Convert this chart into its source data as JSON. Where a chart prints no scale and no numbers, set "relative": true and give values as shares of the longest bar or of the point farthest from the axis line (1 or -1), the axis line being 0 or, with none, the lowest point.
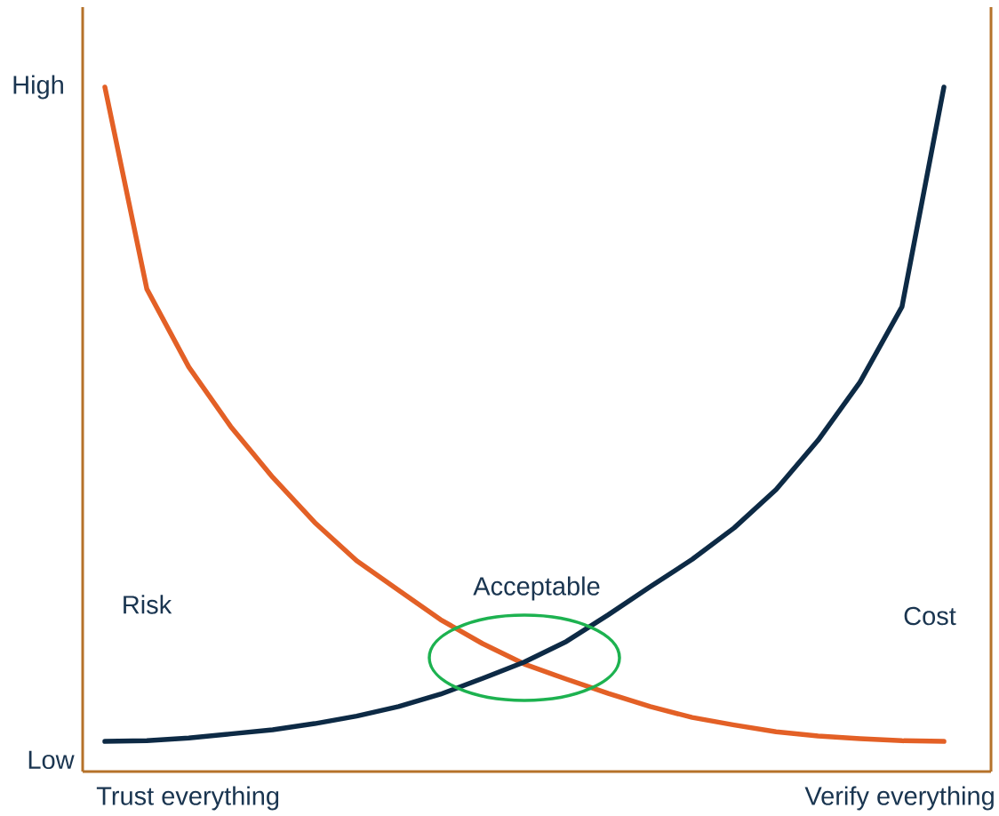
{
  "chart_data": {
    "type": "line",
    "relative": true,
    "line_style": "solid",
    "categories": [
      null,
      null,
      null,
      null,
      null,
      null,
      null,
      null,
      null,
      null,
      null,
      null,
      null,
      null,
      null,
      null,
      null,
      null,
      null,
      null,
      null
    ],
    "series": [
      {
        "color": "#e36026",
        "values": [
          1.0,
          0.705,
          0.591,
          0.504,
          0.43,
          0.364,
          0.308,
          0.265,
          0.222,
          0.187,
          0.157,
          0.135,
          0.114,
          0.095,
          0.079,
          0.068,
          0.058,
          0.052,
          0.048,
          0.045,
          0.044
        ]
      },
      {
        "color": "#0d2a45",
        "values": [
          0.044,
          0.045,
          0.049,
          0.055,
          0.061,
          0.07,
          0.081,
          0.095,
          0.113,
          0.136,
          0.16,
          0.19,
          0.229,
          0.27,
          0.31,
          0.356,
          0.412,
          0.484,
          0.569,
          0.679,
          1.0
        ]
      }
    ],
    "annotations": [
      "High",
      "Low",
      "Trust everything",
      "Verify everything",
      "Acceptable",
      "Risk",
      "Cost"
    ]
  }
}
